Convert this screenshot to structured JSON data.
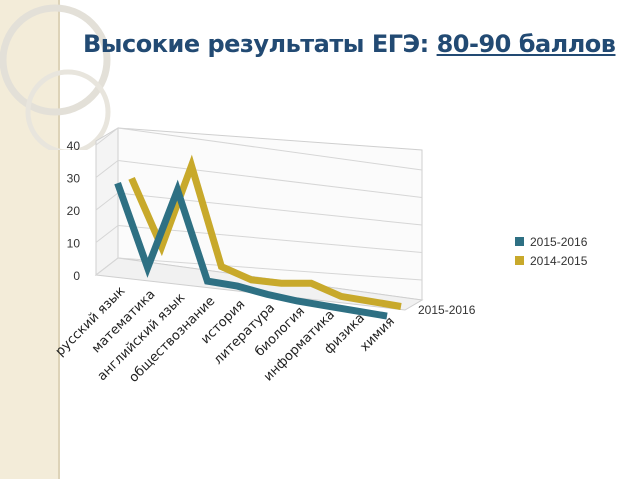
{
  "slide": {
    "title_main": "Высокие результаты ЕГЭ: ",
    "title_highlight": "80-90 баллов"
  },
  "chart_data": {
    "type": "line",
    "title": "Высокие результаты ЕГЭ: 80-90 баллов",
    "categories": [
      "русский язык",
      "математика",
      "английский язык",
      "обществознание",
      "история",
      "литература",
      "биология",
      "информатика",
      "физика",
      "химия"
    ],
    "series": [
      {
        "name": "2015-2016",
        "values": [
          29,
          4,
          29,
          2,
          1.5,
          0,
          -1,
          -1.5,
          -2,
          -2.5
        ],
        "color": "#2e7083"
      },
      {
        "name": "2014-2015",
        "values": [
          28,
          8,
          34,
          4,
          1,
          1,
          2,
          -1,
          -1.5,
          -2
        ],
        "color": "#c8a92b"
      }
    ],
    "depth_label": "2015-2016",
    "ylim": [
      0,
      40
    ],
    "yticks": [
      "0",
      "10",
      "20",
      "30",
      "40"
    ],
    "legend": {
      "position": "right",
      "entries": [
        "2015-2016",
        "2014-2015"
      ]
    },
    "grid": true
  }
}
